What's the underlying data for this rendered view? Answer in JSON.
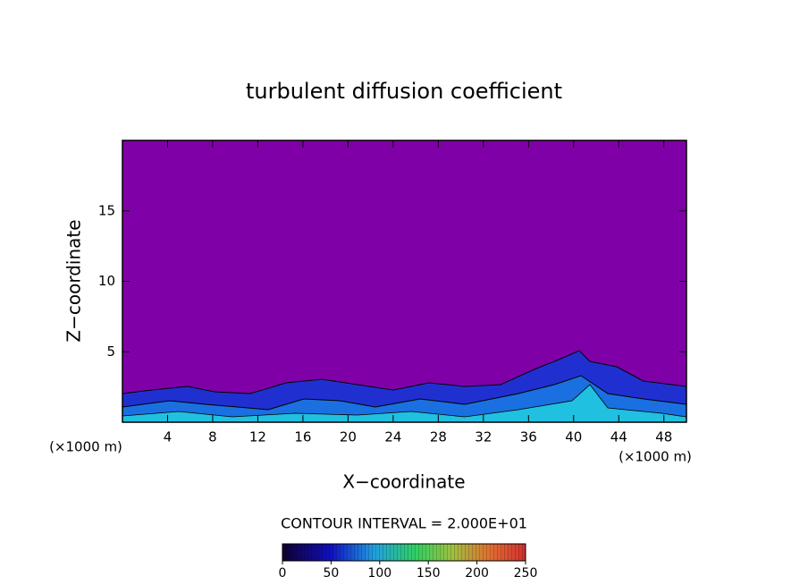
{
  "chart_data": {
    "type": "contour",
    "title": "turbulent diffusion coefficient",
    "xlabel": "X−coordinate",
    "ylabel": "Z−coordinate",
    "xunit": "(×1000 m)",
    "yunit": "(×1000 m)",
    "xlim": [
      0,
      50
    ],
    "xticks": [
      4,
      8,
      12,
      16,
      20,
      24,
      28,
      32,
      36,
      40,
      44,
      48
    ],
    "ylim": [
      0,
      20
    ],
    "yticks": [
      5,
      10,
      15
    ],
    "background_color": "#8000a8",
    "contour_note": "CONTOUR INTERVAL = 2.000E+01",
    "colorbar": {
      "lim": [
        0,
        250
      ],
      "ticks": [
        0,
        50,
        100,
        150,
        200,
        250
      ]
    }
  }
}
